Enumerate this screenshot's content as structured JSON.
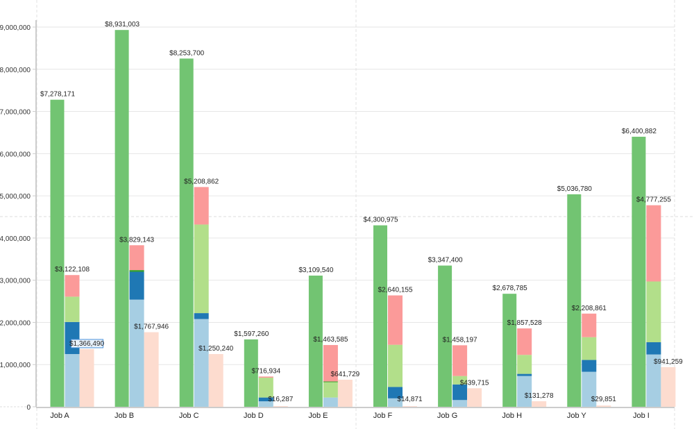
{
  "chart_data": {
    "type": "bar",
    "title": "",
    "xlabel": "",
    "ylabel": "",
    "ylim": [
      0,
      9000000
    ],
    "y_ticks": [
      "0",
      "1,000,000",
      "2,000,000",
      "3,000,000",
      "4,000,000",
      "5,000,000",
      "6,000,000",
      "7,000,000",
      "8,000,000",
      "9,000,000"
    ],
    "y_tick_values": [
      0,
      1000000,
      2000000,
      3000000,
      4000000,
      5000000,
      6000000,
      7000000,
      8000000,
      9000000
    ],
    "grid": true,
    "legend": "none",
    "categories": [
      "Job A",
      "Job B",
      "Job C",
      "Job D",
      "Job E",
      "Job F",
      "Job G",
      "Job H",
      "Job Y",
      "Job I"
    ],
    "colors": {
      "total": "#72c472",
      "stack_seg1": "#a6cee3",
      "stack_seg2": "#1f78b4",
      "stack_seg3": "#b2df8a",
      "stack_seg4": "#33a02c",
      "stack_seg5": "#fb9a99",
      "third": "#fddccf"
    },
    "series": [
      {
        "name": "Total",
        "values": [
          7278171,
          8931003,
          8253700,
          1597260,
          3109540,
          4300975,
          3347400,
          2678785,
          5036780,
          6400882
        ],
        "labels": [
          "$7,278,171",
          "$8,931,003",
          "$8,253,700",
          "$1,597,260",
          "$3,109,540",
          "$4,300,975",
          "$3,347,400",
          "$2,678,785",
          "$5,036,780",
          "$6,400,882"
        ]
      },
      {
        "name": "Stacked",
        "totals": [
          3122108,
          3829143,
          5208862,
          716934,
          1463585,
          2640155,
          1458197,
          1857528,
          2208861,
          4777255
        ],
        "labels": [
          "$3,122,108",
          "$3,829,143",
          "$5,208,862",
          "$716,934",
          "$1,463,585",
          "$2,640,155",
          "$1,458,197",
          "$1,857,528",
          "$2,208,861",
          "$4,777,255"
        ],
        "segments": [
          {
            "name": "seg1",
            "values": [
              1250000,
              2540000,
              2080000,
              130000,
              220000,
              200000,
              160000,
              730000,
              830000,
              1240000
            ]
          },
          {
            "name": "seg2",
            "values": [
              760000,
              660000,
              140000,
              90000,
              0,
              270000,
              370000,
              50000,
              280000,
              290000
            ]
          },
          {
            "name": "seg3",
            "values": [
              600000,
              0,
              2100000,
              470000,
              370000,
              1000000,
              200000,
              450000,
              540000,
              1440000
            ]
          },
          {
            "name": "seg4",
            "values": [
              0,
              40000,
              0,
              0,
              10000,
              0,
              0,
              0,
              0,
              0
            ]
          },
          {
            "name": "seg5",
            "values": [
              512108,
              589143,
              888862,
              26934,
              863585,
              1170155,
              728197,
              627528,
              558861,
              1807255
            ]
          }
        ]
      },
      {
        "name": "Third",
        "values": [
          1366490,
          1767946,
          1250240,
          16287,
          641729,
          14871,
          439715,
          131278,
          29851,
          941259
        ],
        "labels": [
          "$1,366,490",
          "$1,767,946",
          "$1,250,240",
          "$16,287",
          "$641,729",
          "$14,871",
          "$439,715",
          "$131,278",
          "$29,851",
          "$941,259"
        ]
      }
    ],
    "highlighted_label": {
      "series": "Third",
      "category": "Job A"
    }
  }
}
